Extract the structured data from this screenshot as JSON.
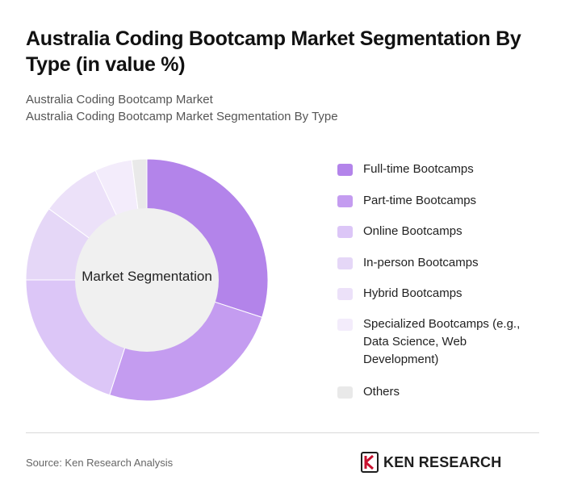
{
  "header": {
    "title": "Australia Coding Bootcamp Market Segmentation By Type (in value %)",
    "subtitle_line1": "Australia Coding Bootcamp Market",
    "subtitle_line2": "Australia Coding Bootcamp Market Segmentation By Type"
  },
  "chart_data": {
    "type": "pie",
    "subtype": "donut",
    "center_label": "Market Segmentation",
    "categories": [
      "Full-time Bootcamps",
      "Part-time Bootcamps",
      "Online Bootcamps",
      "In-person Bootcamps",
      "Hybrid Bootcamps",
      "Specialized Bootcamps (e.g., Data Science, Web Development)",
      "Others"
    ],
    "values": [
      30,
      25,
      20,
      10,
      8,
      5,
      2
    ],
    "colors": [
      "#b384ea",
      "#c49cf0",
      "#dcc6f7",
      "#e5d7f7",
      "#ece1f9",
      "#f3ecfb",
      "#e9e9e9"
    ],
    "legend_position": "right"
  },
  "footer": {
    "source": "Source: Ken Research Analysis",
    "brand": "KEN RESEARCH",
    "brand_icon": "ken-research-logo-icon"
  }
}
